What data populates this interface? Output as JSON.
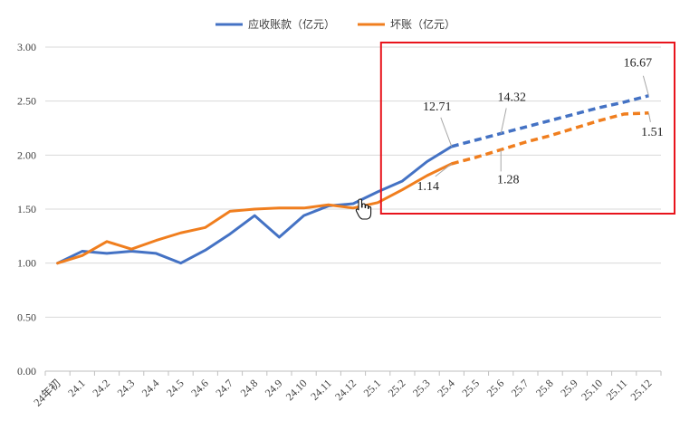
{
  "chart_data": {
    "type": "line",
    "categories": [
      "24年初",
      "24.1",
      "24.2",
      "24.3",
      "24.4",
      "24.5",
      "24.6",
      "24.7",
      "24.8",
      "24.9",
      "24.10",
      "24.11",
      "24.12",
      "25.1",
      "25.2",
      "25.3",
      "25.4",
      "25.5",
      "25.6",
      "25.7",
      "25.8",
      "25.9",
      "25.10",
      "25.11",
      "25.12"
    ],
    "ylim": [
      0,
      3
    ],
    "yticks": [
      "0.00",
      "0.50",
      "1.00",
      "1.50",
      "2.00",
      "2.50",
      "3.00"
    ],
    "grid": true,
    "legend_position": "top",
    "series": [
      {
        "name": "应收账款（亿元）",
        "color": "#4472C4",
        "values": [
          1.0,
          1.11,
          1.09,
          1.11,
          1.09,
          1.0,
          1.12,
          1.27,
          1.44,
          1.24,
          1.44,
          1.53,
          1.55,
          1.66,
          1.76,
          1.94,
          2.08,
          2.14,
          2.2,
          2.26,
          2.32,
          2.38,
          2.44,
          2.49,
          2.55
        ],
        "solid_until_index": 16
      },
      {
        "name": "坏账（亿元）",
        "color": "#F07E1E",
        "values": [
          1.0,
          1.07,
          1.2,
          1.13,
          1.21,
          1.28,
          1.33,
          1.48,
          1.5,
          1.51,
          1.51,
          1.54,
          1.51,
          1.56,
          1.68,
          1.81,
          1.92,
          1.98,
          2.05,
          2.12,
          2.18,
          2.25,
          2.32,
          2.38,
          2.39
        ],
        "solid_until_index": 16
      }
    ],
    "annotations": [
      {
        "text": "12.71",
        "series": 0,
        "index": 16
      },
      {
        "text": "14.32",
        "series": 0,
        "index": 18
      },
      {
        "text": "16.67",
        "series": 0,
        "index": 24
      },
      {
        "text": "1.14",
        "series": 1,
        "index": 16
      },
      {
        "text": "1.28",
        "series": 1,
        "index": 18
      },
      {
        "text": "1.51",
        "series": 1,
        "index": 24
      }
    ],
    "highlight_box_color": "#E8141C"
  }
}
